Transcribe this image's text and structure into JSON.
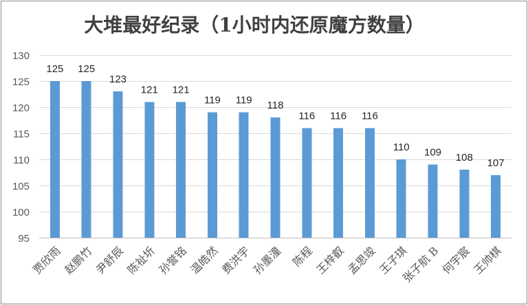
{
  "chart_data": {
    "type": "bar",
    "title": "大堆最好纪录（1小时内还原魔方数量）",
    "categories": [
      "贾欣雨",
      "赵鹏竹",
      "尹舒辰",
      "陈祉圻",
      "孙誉铭",
      "温皓然",
      "费洪宇",
      "孙墨潼",
      "陈程",
      "王梓叡",
      "孟思竣",
      "王子琪",
      "张子航 B",
      "何宇宸",
      "王帅棋"
    ],
    "values": [
      125,
      125,
      123,
      121,
      121,
      119,
      119,
      118,
      116,
      116,
      116,
      110,
      109,
      108,
      107
    ],
    "ylim": [
      95,
      130
    ],
    "yticks": [
      95,
      100,
      105,
      110,
      115,
      120,
      125,
      130
    ],
    "grid": true,
    "legend": false,
    "data_labels": true,
    "colors": {
      "bar": "#5B9BD5"
    }
  }
}
